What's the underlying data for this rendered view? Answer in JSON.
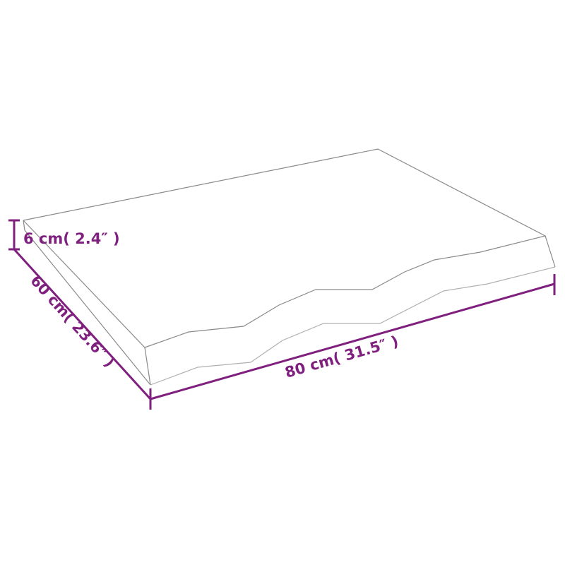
{
  "colors": {
    "dimension": "#7f1f7e",
    "outline": "#8a8a8a",
    "background": "#ffffff"
  },
  "dimensions": {
    "height_label": "6 cm( 2.4″  )",
    "depth_label": "60 cm( 23.6″  )",
    "width_label": "80 cm( 31.5″  )"
  }
}
